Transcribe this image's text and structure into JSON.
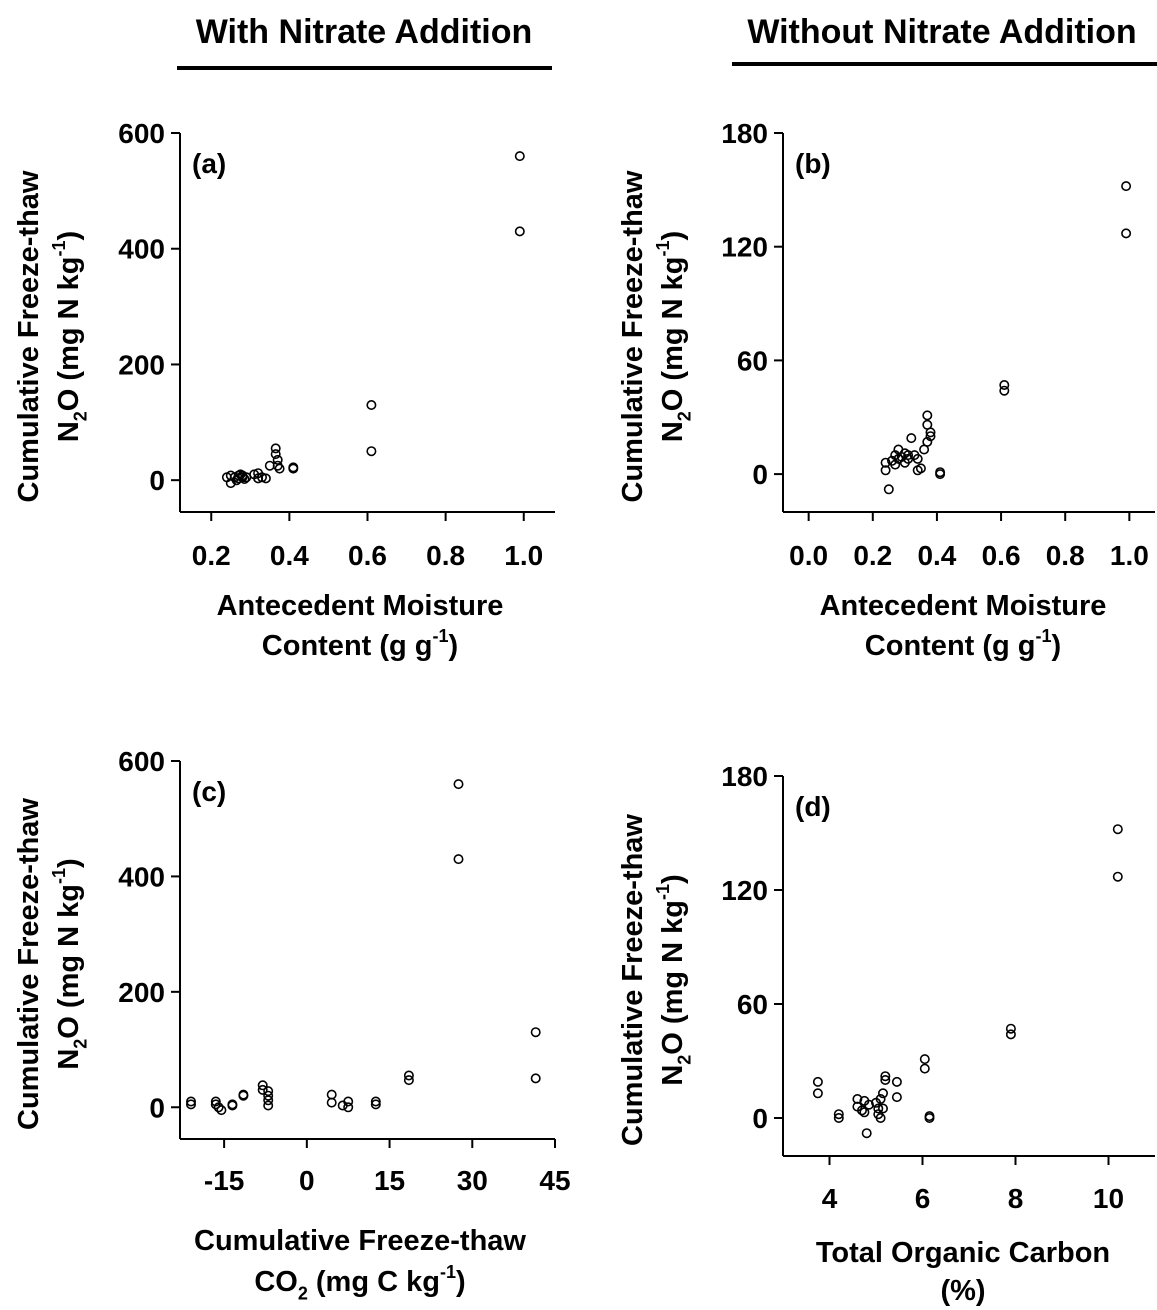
{
  "headings": {
    "left": "With Nitrate Addition",
    "right": "Without Nitrate Addition"
  },
  "colors": {
    "ink": "#000000",
    "background": "#ffffff"
  },
  "chart_data": [
    {
      "id": "a",
      "type": "scatter",
      "panel_label": "(a)",
      "ylabel_line1": "Cumulative Freeze-thaw",
      "ylabel_line2": "N2O (mg N kg-1)",
      "xlabel_line1": "Antecedent Moisture",
      "xlabel_line2": "Content (g g-1)",
      "xlim": [
        0.12,
        1.08
      ],
      "ylim": [
        -55,
        600
      ],
      "xticks": [
        0.2,
        0.4,
        0.6,
        0.8,
        1.0
      ],
      "xtick_labels": [
        "0.2",
        "0.4",
        "0.6",
        "0.8",
        "1.0"
      ],
      "yticks": [
        0,
        200,
        400,
        600
      ],
      "ytick_labels": [
        "0",
        "200",
        "400",
        "600"
      ],
      "grid": false,
      "points": [
        {
          "x": 0.99,
          "y": 560
        },
        {
          "x": 0.99,
          "y": 430
        },
        {
          "x": 0.61,
          "y": 130
        },
        {
          "x": 0.61,
          "y": 50
        },
        {
          "x": 0.365,
          "y": 55
        },
        {
          "x": 0.365,
          "y": 45
        },
        {
          "x": 0.37,
          "y": 35
        },
        {
          "x": 0.37,
          "y": 25
        },
        {
          "x": 0.35,
          "y": 25
        },
        {
          "x": 0.375,
          "y": 20
        },
        {
          "x": 0.41,
          "y": 22
        },
        {
          "x": 0.41,
          "y": 20
        },
        {
          "x": 0.24,
          "y": 5
        },
        {
          "x": 0.25,
          "y": -5
        },
        {
          "x": 0.25,
          "y": 8
        },
        {
          "x": 0.26,
          "y": 5
        },
        {
          "x": 0.265,
          "y": 0
        },
        {
          "x": 0.27,
          "y": 8
        },
        {
          "x": 0.27,
          "y": 3
        },
        {
          "x": 0.275,
          "y": 10
        },
        {
          "x": 0.28,
          "y": 5
        },
        {
          "x": 0.28,
          "y": 8
        },
        {
          "x": 0.285,
          "y": 2
        },
        {
          "x": 0.29,
          "y": 5
        },
        {
          "x": 0.31,
          "y": 10
        },
        {
          "x": 0.32,
          "y": 12
        },
        {
          "x": 0.33,
          "y": 5
        },
        {
          "x": 0.32,
          "y": 3
        },
        {
          "x": 0.34,
          "y": 3
        }
      ]
    },
    {
      "id": "b",
      "type": "scatter",
      "panel_label": "(b)",
      "ylabel_line1": "Cumulative Freeze-thaw",
      "ylabel_line2": "N2O (mg N kg-1)",
      "xlabel_line1": "Antecedent Moisture",
      "xlabel_line2": "Content (g g-1)",
      "xlim": [
        -0.08,
        1.08
      ],
      "ylim": [
        -20,
        180
      ],
      "xticks": [
        0.0,
        0.2,
        0.4,
        0.6,
        0.8,
        1.0
      ],
      "xtick_labels": [
        "0.0",
        "0.2",
        "0.4",
        "0.6",
        "0.8",
        "1.0"
      ],
      "yticks": [
        0,
        60,
        120,
        180
      ],
      "ytick_labels": [
        "0",
        "60",
        "120",
        "180"
      ],
      "grid": false,
      "points": [
        {
          "x": 0.99,
          "y": 152
        },
        {
          "x": 0.99,
          "y": 127
        },
        {
          "x": 0.61,
          "y": 47
        },
        {
          "x": 0.61,
          "y": 44
        },
        {
          "x": 0.37,
          "y": 31
        },
        {
          "x": 0.37,
          "y": 26
        },
        {
          "x": 0.38,
          "y": 22
        },
        {
          "x": 0.38,
          "y": 20
        },
        {
          "x": 0.37,
          "y": 17
        },
        {
          "x": 0.36,
          "y": 13
        },
        {
          "x": 0.32,
          "y": 19
        },
        {
          "x": 0.33,
          "y": 10
        },
        {
          "x": 0.34,
          "y": 8
        },
        {
          "x": 0.35,
          "y": 3
        },
        {
          "x": 0.34,
          "y": 2
        },
        {
          "x": 0.41,
          "y": 1
        },
        {
          "x": 0.41,
          "y": 0
        },
        {
          "x": 0.24,
          "y": 6
        },
        {
          "x": 0.24,
          "y": 2
        },
        {
          "x": 0.25,
          "y": -8
        },
        {
          "x": 0.26,
          "y": 7
        },
        {
          "x": 0.27,
          "y": 10
        },
        {
          "x": 0.27,
          "y": 5
        },
        {
          "x": 0.28,
          "y": 13
        },
        {
          "x": 0.28,
          "y": 8
        },
        {
          "x": 0.29,
          "y": 9
        },
        {
          "x": 0.3,
          "y": 11
        },
        {
          "x": 0.3,
          "y": 6
        },
        {
          "x": 0.31,
          "y": 10
        },
        {
          "x": 0.31,
          "y": 8
        }
      ]
    },
    {
      "id": "c",
      "type": "scatter",
      "panel_label": "(c)",
      "ylabel_line1": "Cumulative Freeze-thaw",
      "ylabel_line2": "N2O (mg N kg-1)",
      "xlabel_line1": "Cumulative Freeze-thaw",
      "xlabel_line2": "CO2 (mg C kg-1)",
      "xlim": [
        -23,
        45
      ],
      "ylim": [
        -55,
        600
      ],
      "xticks": [
        -15,
        0,
        15,
        30,
        45
      ],
      "xtick_labels": [
        "-15",
        "0",
        "15",
        "30",
        "45"
      ],
      "yticks": [
        0,
        200,
        400,
        600
      ],
      "ytick_labels": [
        "0",
        "200",
        "400",
        "600"
      ],
      "grid": false,
      "points": [
        {
          "x": 27.5,
          "y": 560
        },
        {
          "x": 27.5,
          "y": 430
        },
        {
          "x": 41.5,
          "y": 130
        },
        {
          "x": 41.5,
          "y": 50
        },
        {
          "x": 18.5,
          "y": 55
        },
        {
          "x": 18.5,
          "y": 47
        },
        {
          "x": -21,
          "y": 10
        },
        {
          "x": -21,
          "y": 5
        },
        {
          "x": -16.5,
          "y": 10
        },
        {
          "x": -16.5,
          "y": 5
        },
        {
          "x": -16,
          "y": 0
        },
        {
          "x": -15.5,
          "y": -5
        },
        {
          "x": -13.5,
          "y": 5
        },
        {
          "x": -13.5,
          "y": 3
        },
        {
          "x": -11.5,
          "y": 22
        },
        {
          "x": -11.5,
          "y": 20
        },
        {
          "x": -8,
          "y": 38
        },
        {
          "x": -8,
          "y": 30
        },
        {
          "x": -7,
          "y": 28
        },
        {
          "x": -7,
          "y": 20
        },
        {
          "x": -7,
          "y": 12
        },
        {
          "x": -7,
          "y": 3
        },
        {
          "x": 4.5,
          "y": 22
        },
        {
          "x": 4.5,
          "y": 8
        },
        {
          "x": 6.5,
          "y": 3
        },
        {
          "x": 7.5,
          "y": 10
        },
        {
          "x": 7.5,
          "y": 0
        },
        {
          "x": 12.5,
          "y": 10
        },
        {
          "x": 12.5,
          "y": 5
        }
      ]
    },
    {
      "id": "d",
      "type": "scatter",
      "panel_label": "(d)",
      "ylabel_line1": "Cumulative Freeze-thaw",
      "ylabel_line2": "N2O (mg N kg-1)",
      "xlabel_line1": "Total Organic Carbon",
      "xlabel_line2": "(%)",
      "xlim": [
        3,
        11
      ],
      "ylim": [
        -20,
        180
      ],
      "xticks": [
        4,
        6,
        8,
        10
      ],
      "xtick_labels": [
        "4",
        "6",
        "8",
        "10"
      ],
      "yticks": [
        0,
        60,
        120,
        180
      ],
      "ytick_labels": [
        "0",
        "60",
        "120",
        "180"
      ],
      "grid": false,
      "points": [
        {
          "x": 10.2,
          "y": 152
        },
        {
          "x": 10.2,
          "y": 127
        },
        {
          "x": 7.9,
          "y": 47
        },
        {
          "x": 7.9,
          "y": 44
        },
        {
          "x": 6.05,
          "y": 31
        },
        {
          "x": 6.05,
          "y": 26
        },
        {
          "x": 6.15,
          "y": 1
        },
        {
          "x": 6.15,
          "y": 0
        },
        {
          "x": 3.75,
          "y": 19
        },
        {
          "x": 3.75,
          "y": 13
        },
        {
          "x": 4.2,
          "y": 2
        },
        {
          "x": 4.2,
          "y": 0
        },
        {
          "x": 4.6,
          "y": 10
        },
        {
          "x": 4.6,
          "y": 6
        },
        {
          "x": 4.7,
          "y": 4
        },
        {
          "x": 4.75,
          "y": 9
        },
        {
          "x": 4.75,
          "y": 3
        },
        {
          "x": 4.8,
          "y": -8
        },
        {
          "x": 4.85,
          "y": 7
        },
        {
          "x": 5.0,
          "y": 8
        },
        {
          "x": 5.05,
          "y": 5
        },
        {
          "x": 5.05,
          "y": 2
        },
        {
          "x": 5.1,
          "y": 10
        },
        {
          "x": 5.1,
          "y": 0
        },
        {
          "x": 5.15,
          "y": 13
        },
        {
          "x": 5.15,
          "y": 5
        },
        {
          "x": 5.2,
          "y": 22
        },
        {
          "x": 5.2,
          "y": 20
        },
        {
          "x": 5.45,
          "y": 19
        },
        {
          "x": 5.45,
          "y": 11
        }
      ]
    }
  ]
}
